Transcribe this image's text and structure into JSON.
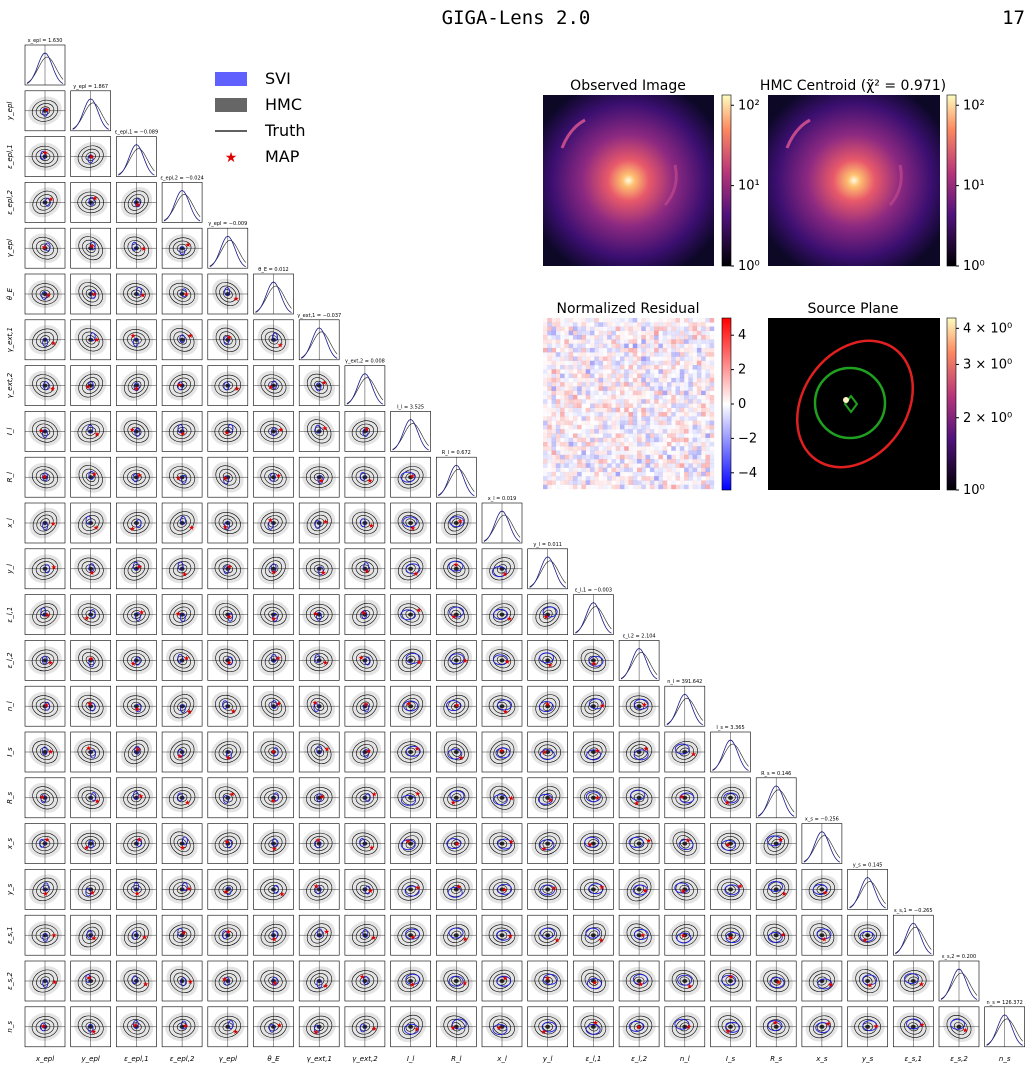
{
  "header": {
    "title": "GIGA-Lens 2.0",
    "page": "17"
  },
  "legend": [
    {
      "label": "SVI"
    },
    {
      "label": "HMC"
    },
    {
      "label": "Truth"
    },
    {
      "label": "MAP"
    }
  ],
  "corner": {
    "parameters": [
      "x_epl",
      "y_epl",
      "ε_epl,1",
      "ε_epl,2",
      "γ_epl",
      "θ_E",
      "γ_ext,1",
      "γ_ext,2",
      "I_l",
      "R_l",
      "x_l",
      "y_l",
      "ε_l,1",
      "ε_l,2",
      "n_l",
      "I_s",
      "R_s",
      "x_s",
      "y_s",
      "ε_s,1",
      "ε_s,2",
      "n_s"
    ],
    "diagonal_titles": [
      "x_epl = 1.630",
      "y_epl = 1.867",
      "ε_epl,1 = −0.089",
      "ε_epl,2 = −0.024",
      "γ_epl = −0.009",
      "θ_E = 0.012",
      "γ_ext,1 = −0.037",
      "γ_ext,2 = 0.008",
      "I_l = 3.525",
      "R_l = 0.672",
      "x_l = 0.019",
      "y_l = 0.011",
      "ε_l,1 = −0.003",
      "ε_l,2 = 2.104",
      "n_l = 391.642",
      "I_s = 3.365",
      "R_s = 0.146",
      "x_s = −0.256",
      "y_s = 0.145",
      "ε_s,1 = −0.265",
      "ε_s,2 = 0.200",
      "n_s = 126.372"
    ]
  },
  "panels": [
    {
      "title": "Observed Image",
      "colorbar_ticks": [
        "10²",
        "10¹",
        "10⁰"
      ]
    },
    {
      "title": "HMC Centroid (χ̃² = 0.971)",
      "colorbar_ticks": [
        "10²",
        "10¹",
        "10⁰"
      ]
    },
    {
      "title": "Normalized Residual",
      "colorbar_ticks": [
        "4",
        "2",
        "0",
        "−2",
        "−4"
      ]
    },
    {
      "title": "Source Plane",
      "colorbar_ticks": [
        "4 × 10⁰",
        "3 × 10⁰",
        "2 × 10⁰",
        "10⁰"
      ]
    }
  ]
}
